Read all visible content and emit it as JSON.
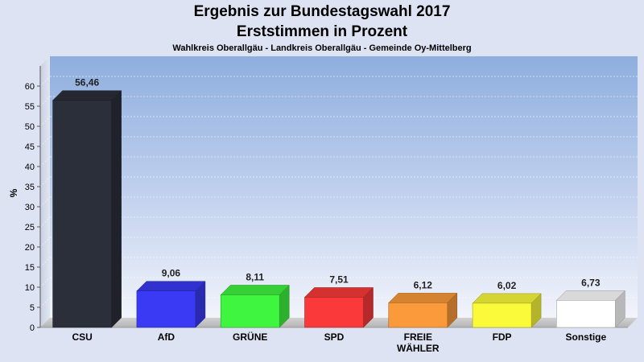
{
  "header": {
    "title_line1": "Ergebnis zur Bundestagswahl 2017",
    "title_line2": "Erststimmen in Prozent",
    "subtitle": "Wahlkreis Oberallgäu - Landkreis Oberallgäu - Gemeinde Oy-Mittelberg"
  },
  "chart_data": {
    "type": "bar",
    "title": "Ergebnis zur Bundestagswahl 2017 / Erststimmen in Prozent",
    "subtitle": "Wahlkreis Oberallgäu - Landkreis Oberallgäu - Gemeinde Oy-Mittelberg",
    "xlabel": "",
    "ylabel": "%",
    "ylim": [
      0,
      65
    ],
    "yticks": [
      0,
      5,
      10,
      15,
      20,
      25,
      30,
      35,
      40,
      45,
      50,
      55,
      60
    ],
    "grid": true,
    "legend": "none",
    "categories": [
      "CSU",
      "AfD",
      "GRÜNE",
      "SPD",
      "FREIE WÄHLER",
      "FDP",
      "Sonstige"
    ],
    "category_labels": [
      [
        "CSU"
      ],
      [
        "AfD"
      ],
      [
        "GRÜNE"
      ],
      [
        "SPD"
      ],
      [
        "FREIE",
        "WÄHLER"
      ],
      [
        "FDP"
      ],
      [
        "Sonstige"
      ]
    ],
    "values": [
      56.46,
      9.06,
      8.11,
      7.51,
      6.12,
      6.02,
      6.73
    ],
    "value_labels": [
      "56,46",
      "9,06",
      "8,11",
      "7,51",
      "6,12",
      "6,02",
      "6,73"
    ],
    "colors": [
      "#2b2f3a",
      "#3a3af5",
      "#3ff53f",
      "#fa3a3a",
      "#fb9a3a",
      "#fafa3a",
      "#ffffff"
    ]
  }
}
